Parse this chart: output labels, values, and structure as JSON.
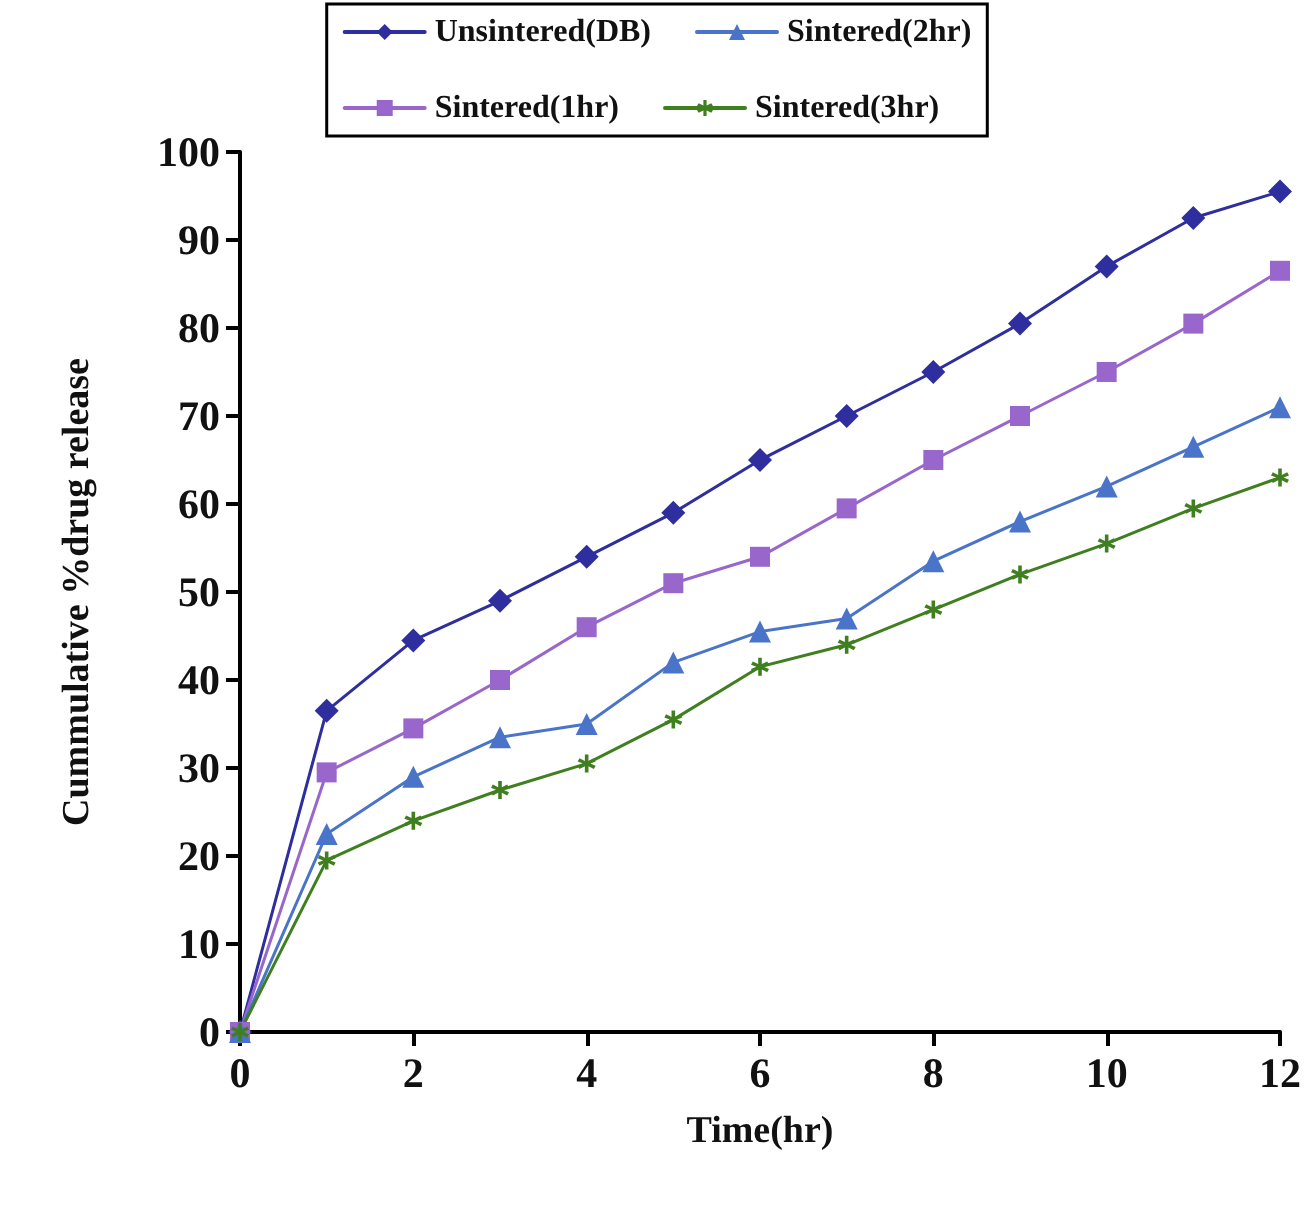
{
  "chart_data": {
    "type": "line",
    "xlabel": "Time(hr)",
    "ylabel": "Cummulative %drug release",
    "x": [
      0,
      1,
      2,
      3,
      4,
      5,
      6,
      7,
      8,
      9,
      10,
      11,
      12
    ],
    "series": [
      {
        "name": "Unsintered(DB)",
        "color": "#2e2e9e",
        "marker": "diamond",
        "values": [
          0,
          36.5,
          44.5,
          49,
          54,
          59,
          65,
          70,
          75,
          80.5,
          87,
          92.5,
          95.5
        ]
      },
      {
        "name": "Sintered(1hr)",
        "color": "#9966cc",
        "marker": "square",
        "values": [
          0,
          29.5,
          34.5,
          40,
          46,
          51,
          54,
          59.5,
          65,
          70,
          75,
          80.5,
          86.5
        ]
      },
      {
        "name": "Sintered(2hr)",
        "color": "#4a74c9",
        "marker": "triangle",
        "values": [
          0,
          22.5,
          29,
          33.5,
          35,
          42,
          45.5,
          47,
          53.5,
          58,
          62,
          66.5,
          71
        ]
      },
      {
        "name": "Sintered(3hr)",
        "color": "#3f7f1f",
        "marker": "star",
        "values": [
          0,
          19.5,
          24,
          27.5,
          30.5,
          35.5,
          41.5,
          44,
          48,
          52,
          55.5,
          59.5,
          63
        ]
      }
    ],
    "xlim": [
      0,
      12
    ],
    "xticks": [
      0,
      2,
      4,
      6,
      8,
      10,
      12
    ],
    "ylim": [
      0,
      100
    ],
    "yticks": [
      0,
      10,
      20,
      30,
      40,
      50,
      60,
      70,
      80,
      90,
      100
    ],
    "grid": false,
    "legend": "top",
    "line_style": "solid"
  }
}
